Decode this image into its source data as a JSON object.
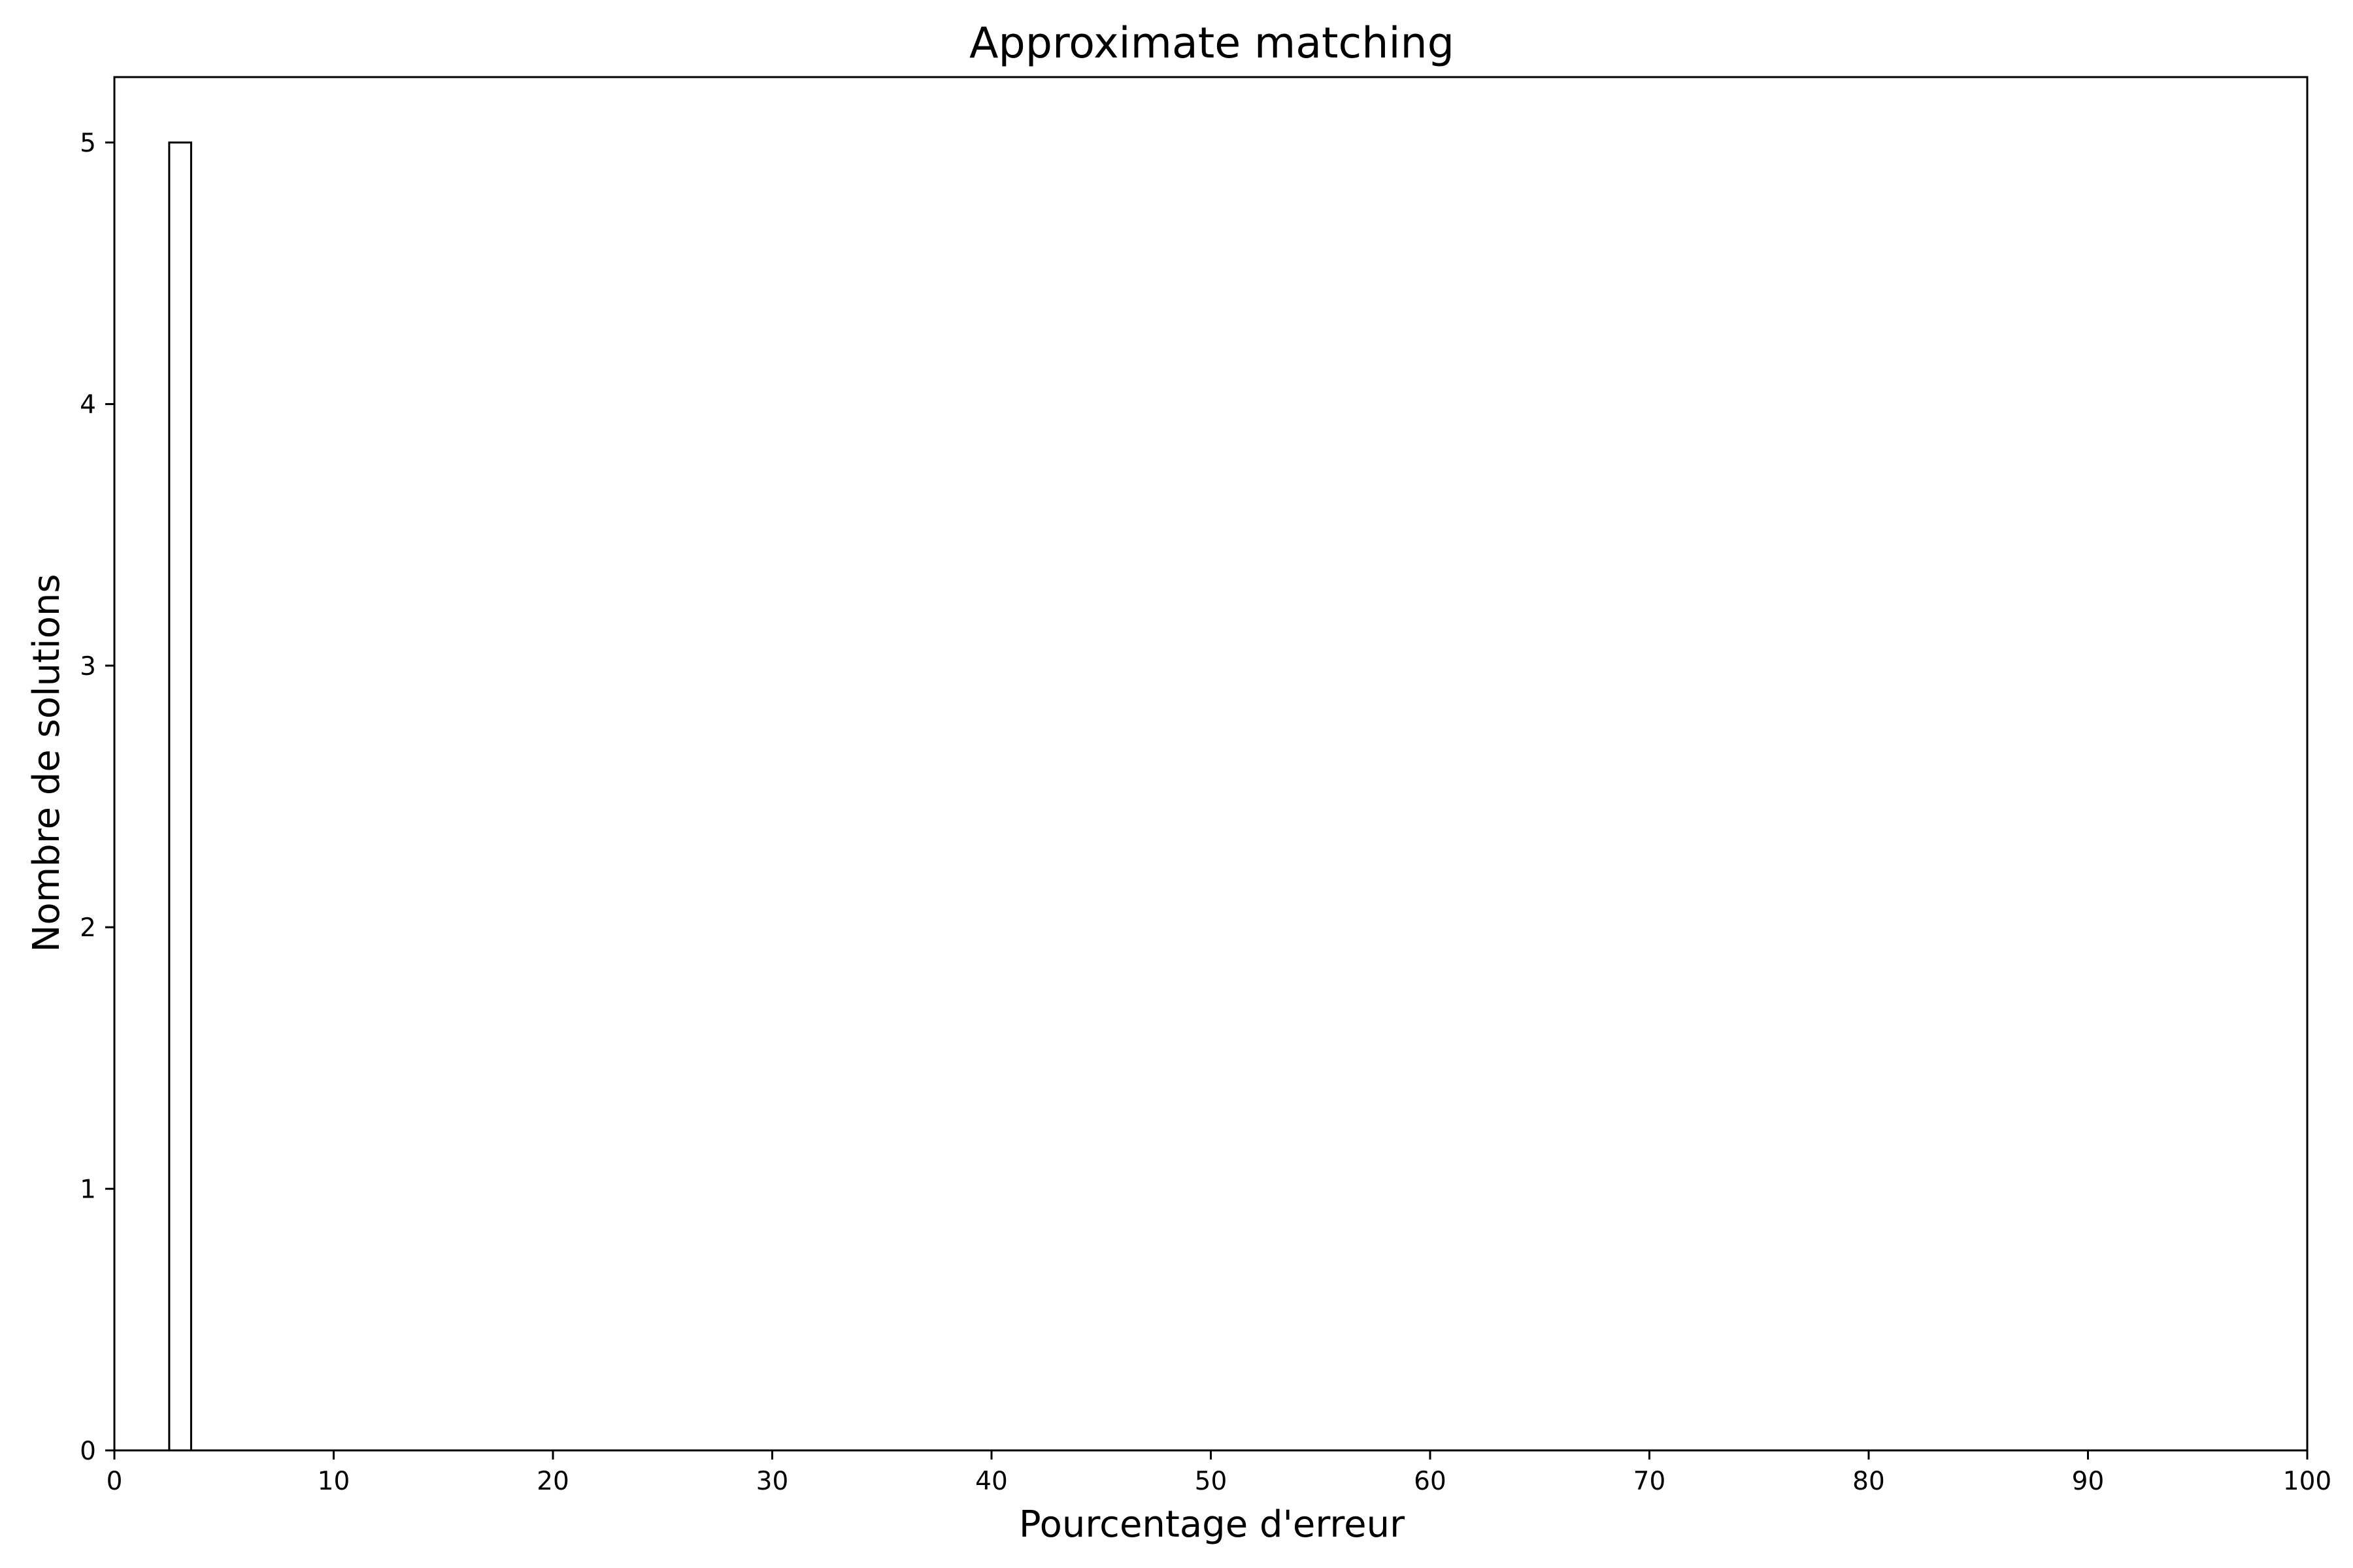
{
  "chart_data": {
    "type": "bar",
    "title": "Approximate matching",
    "xlabel": "Pourcentage d'erreur",
    "ylabel": "Nombre de solutions",
    "xlim": [
      0,
      100
    ],
    "ylim": [
      0,
      5.25
    ],
    "xticks": [
      0,
      10,
      20,
      30,
      40,
      50,
      60,
      70,
      80,
      90,
      100
    ],
    "yticks": [
      0,
      1,
      2,
      3,
      4,
      5
    ],
    "bins": [
      {
        "x_start": 2.5,
        "x_end": 3.5,
        "value": 5
      }
    ],
    "bar_fill": "#ffffff",
    "bar_edge": "#000000",
    "grid": false,
    "legend": "none"
  }
}
